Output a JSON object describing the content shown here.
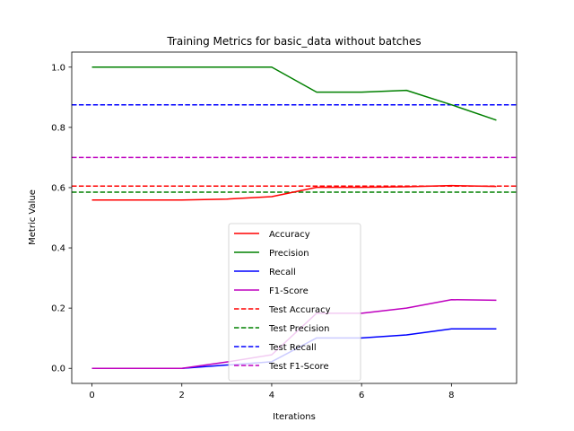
{
  "chart_data": {
    "type": "line",
    "title": "Training Metrics for basic_data without batches",
    "xlabel": "Iterations",
    "ylabel": "Metric Value",
    "xlim": [
      -0.45,
      9.45
    ],
    "ylim": [
      -0.05,
      1.05
    ],
    "xticks": [
      0,
      2,
      4,
      6,
      8
    ],
    "yticks": [
      0.0,
      0.2,
      0.4,
      0.6,
      0.8,
      1.0
    ],
    "x": [
      0,
      1,
      2,
      3,
      4,
      5,
      6,
      7,
      8,
      9
    ],
    "series": [
      {
        "name": "Accuracy",
        "color": "#ff0000",
        "dash": false,
        "values": [
          0.559,
          0.559,
          0.559,
          0.562,
          0.57,
          0.601,
          0.601,
          0.603,
          0.607,
          0.604
        ]
      },
      {
        "name": "Precision",
        "color": "#008000",
        "dash": false,
        "values": [
          1.0,
          1.0,
          1.0,
          1.0,
          1.0,
          0.917,
          0.917,
          0.923,
          0.875,
          0.824
        ]
      },
      {
        "name": "Recall",
        "color": "#0000ff",
        "dash": false,
        "values": [
          0.0,
          0.0,
          0.0,
          0.011,
          0.022,
          0.101,
          0.101,
          0.111,
          0.131,
          0.131
        ]
      },
      {
        "name": "F1-Score",
        "color": "#bf00bf",
        "dash": false,
        "values": [
          0.0,
          0.0,
          0.0,
          0.021,
          0.045,
          0.183,
          0.183,
          0.2,
          0.228,
          0.226
        ]
      }
    ],
    "hlines": [
      {
        "name": "Test Accuracy",
        "color": "#ff0000",
        "value": 0.605
      },
      {
        "name": "Test Precision",
        "color": "#008000",
        "value": 0.585
      },
      {
        "name": "Test Recall",
        "color": "#0000ff",
        "value": 0.875
      },
      {
        "name": "Test F1-Score",
        "color": "#bf00bf",
        "value": 0.7
      }
    ],
    "legend_placement": "lower-center",
    "grid": false
  }
}
